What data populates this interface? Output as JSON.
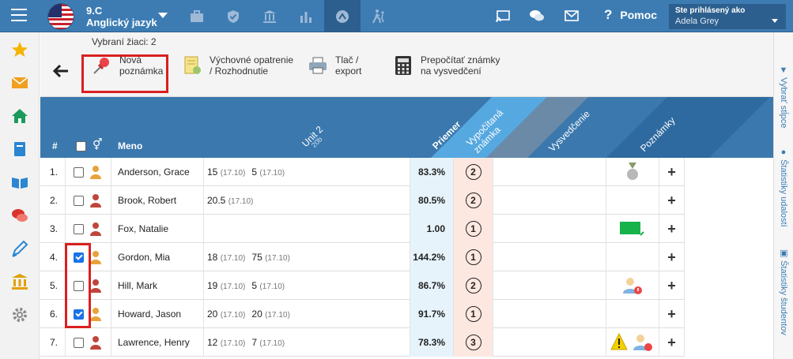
{
  "header": {
    "class_line1": "9.C",
    "class_line2": "Anglický jazyk",
    "help_label": "Pomoc",
    "user_label": "Ste prihlásený ako",
    "user_name": "Adela Grey"
  },
  "toolbar": {
    "selected": "Vybraní žiaci: 2",
    "buttons": [
      {
        "label": "Nová\npoznámka",
        "icon": "pushpin-icon"
      },
      {
        "label": "Výchovné opatrenie\n/ Rozhodnutie",
        "icon": "certificate-icon"
      },
      {
        "label": "Tlač /\nexport",
        "icon": "printer-icon"
      },
      {
        "label": "Prepočítať známky\nna vysvedčení",
        "icon": "calculator-icon"
      }
    ]
  },
  "right_sidebar": {
    "items": [
      "Vybrať stĺpce",
      "Štatistiky udalostí",
      "Štatistiky študentov"
    ]
  },
  "table": {
    "headers": {
      "num": "#",
      "name": "Meno",
      "unit": "Unit 2",
      "unit_sub": "20b",
      "avg": "Priemer",
      "calc": "Vypočítaná známka",
      "vys": "Vysvedčenie",
      "notes": "Poznámky"
    },
    "rows": [
      {
        "num": "1.",
        "checked": false,
        "gender": "female",
        "name": "Anderson, Grace",
        "marks": [
          {
            "v": "15",
            "d": "(17.10)"
          },
          {
            "v": "5",
            "d": "(17.10)"
          }
        ],
        "avg": "83.3%",
        "grade": "2",
        "note": "medal"
      },
      {
        "num": "2.",
        "checked": false,
        "gender": "male",
        "name": "Brook, Robert",
        "marks": [
          {
            "v": "20.5",
            "d": "(17.10)"
          }
        ],
        "avg": "80.5%",
        "grade": "2",
        "note": ""
      },
      {
        "num": "3.",
        "checked": false,
        "gender": "male",
        "name": "Fox, Natalie",
        "marks": [],
        "avg": "1.00",
        "grade": "1",
        "note": "green-note"
      },
      {
        "num": "4.",
        "checked": true,
        "gender": "female",
        "name": "Gordon, Mia",
        "marks": [
          {
            "v": "18",
            "d": "(17.10)"
          },
          {
            "v": "75",
            "d": "(17.10)"
          }
        ],
        "avg": "144.2%",
        "grade": "1",
        "note": ""
      },
      {
        "num": "5.",
        "checked": false,
        "gender": "male",
        "name": "Hill, Mark",
        "marks": [
          {
            "v": "19",
            "d": "(17.10)"
          },
          {
            "v": "5",
            "d": "(17.10)"
          }
        ],
        "avg": "86.7%",
        "grade": "2",
        "note": "user-alert"
      },
      {
        "num": "6.",
        "checked": true,
        "gender": "female",
        "name": "Howard, Jason",
        "marks": [
          {
            "v": "20",
            "d": "(17.10)"
          },
          {
            "v": "20",
            "d": "(17.10)"
          }
        ],
        "avg": "91.7%",
        "grade": "1",
        "note": ""
      },
      {
        "num": "7.",
        "checked": false,
        "gender": "male",
        "name": "Lawrence, Henry",
        "marks": [
          {
            "v": "12",
            "d": "(17.10)"
          },
          {
            "v": "7",
            "d": "(17.10)"
          }
        ],
        "avg": "78.3%",
        "grade": "3",
        "note": "warning-user"
      }
    ]
  }
}
